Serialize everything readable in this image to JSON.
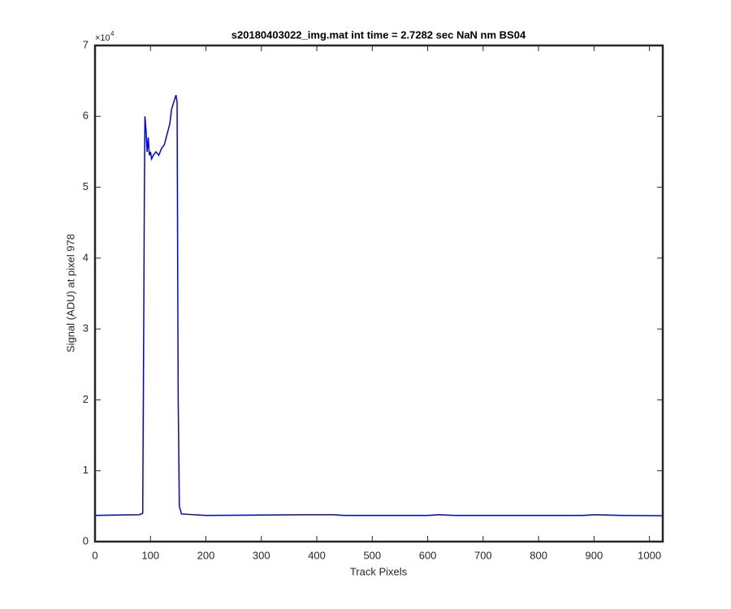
{
  "chart_data": {
    "type": "line",
    "title": "s20180403022_img.mat int time = 2.7282 sec  NaN nm BS04",
    "x_label": "Track Pixels",
    "y_label": "Signal (ADU) at pixel 978",
    "y_multiplier": {
      "base": "×10",
      "exponent": "4"
    },
    "xlim": [
      0,
      1024
    ],
    "xticks": [
      0,
      100,
      200,
      300,
      400,
      500,
      600,
      700,
      800,
      900,
      1000
    ],
    "ylim": [
      0,
      70000
    ],
    "yticks": [
      {
        "value": 0,
        "label": "0"
      },
      {
        "value": 10000,
        "label": "1"
      },
      {
        "value": 20000,
        "label": "2"
      },
      {
        "value": 30000,
        "label": "3"
      },
      {
        "value": 40000,
        "label": "4"
      },
      {
        "value": 50000,
        "label": "5"
      },
      {
        "value": 60000,
        "label": "6"
      },
      {
        "value": 70000,
        "label": "7"
      }
    ],
    "series": [
      {
        "color": "#0000e6",
        "x": [
          0,
          80,
          86,
          88,
          89,
          90,
          92,
          94,
          96,
          98,
          100,
          102,
          105,
          110,
          115,
          120,
          125,
          130,
          135,
          138,
          142,
          146,
          148,
          149,
          150,
          152,
          156,
          200,
          380,
          430,
          450,
          600,
          620,
          650,
          880,
          900,
          950,
          1024
        ],
        "values": [
          3700,
          3800,
          4000,
          33000,
          50000,
          60000,
          58000,
          55000,
          57000,
          54500,
          55000,
          54000,
          54500,
          55000,
          54500,
          55500,
          56000,
          57500,
          59000,
          61000,
          62000,
          63000,
          62000,
          40000,
          20000,
          5000,
          3900,
          3700,
          3800,
          3800,
          3700,
          3700,
          3800,
          3700,
          3700,
          3800,
          3700,
          3650
        ]
      }
    ]
  }
}
